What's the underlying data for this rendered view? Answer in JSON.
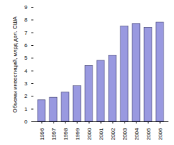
{
  "chart_data": {
    "type": "bar",
    "y_label": "Объемы инвестиций, млрд дол. США",
    "categories": [
      "1996",
      "1997",
      "1998",
      "1999",
      "2000",
      "2001",
      "2002",
      "2003",
      "2004",
      "2005",
      "2006"
    ],
    "values": [
      1.7,
      1.9,
      2.3,
      2.8,
      4.4,
      4.8,
      5.2,
      7.5,
      7.7,
      7.4,
      7.8
    ],
    "color": "#9999e0",
    "ylim": [
      0,
      9
    ],
    "yticks": [
      0,
      1,
      2,
      3,
      4,
      5,
      6,
      7,
      8,
      9
    ],
    "grid": false
  }
}
